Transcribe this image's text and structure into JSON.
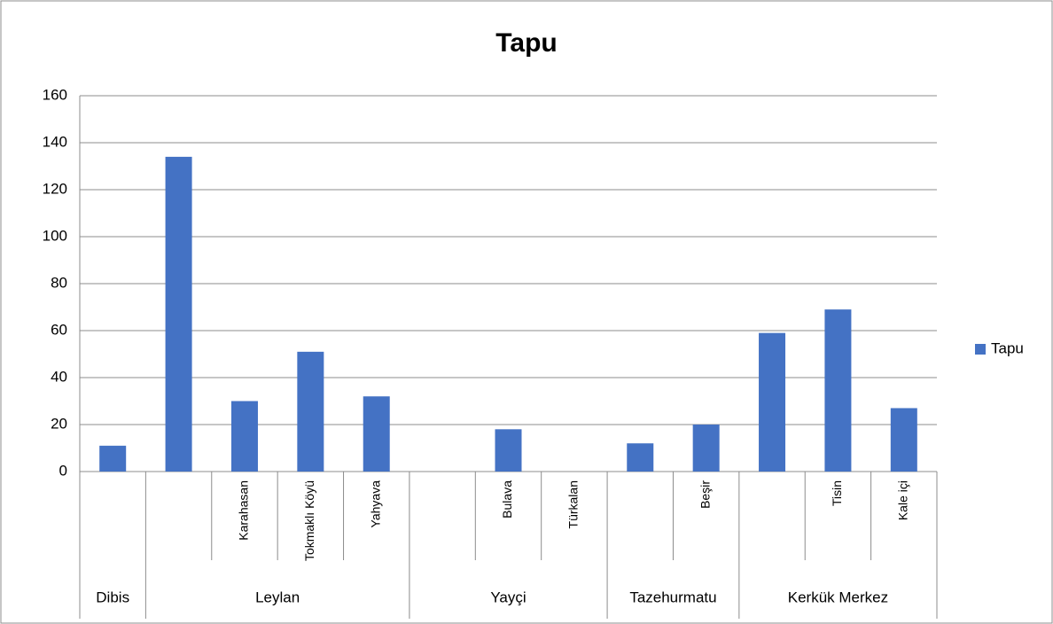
{
  "chart_data": {
    "type": "bar",
    "title": "Tapu",
    "groups": [
      {
        "name": "Dibis",
        "categories": [
          null
        ]
      },
      {
        "name": "Leylan",
        "categories": [
          null,
          "Karahasan",
          "Tokmaklı Köyü",
          "Yahyava"
        ]
      },
      {
        "name": "Yayçi",
        "categories": [
          null,
          "Bulava",
          "Türkalan"
        ]
      },
      {
        "name": "Tazehurmatu",
        "categories": [
          null,
          "Beşir"
        ]
      },
      {
        "name": "Kerkük Merkez",
        "categories": [
          null,
          "Tisin",
          "Kale içi"
        ]
      }
    ],
    "series": [
      {
        "name": "Tapu",
        "color": "#4472c4",
        "values": [
          11,
          134,
          30,
          51,
          32,
          null,
          18,
          null,
          12,
          20,
          59,
          69,
          27
        ]
      }
    ],
    "ylim": [
      0,
      160
    ],
    "yticks": [
      0,
      20,
      40,
      60,
      80,
      100,
      120,
      140,
      160
    ],
    "grid": true,
    "legend": "right"
  }
}
